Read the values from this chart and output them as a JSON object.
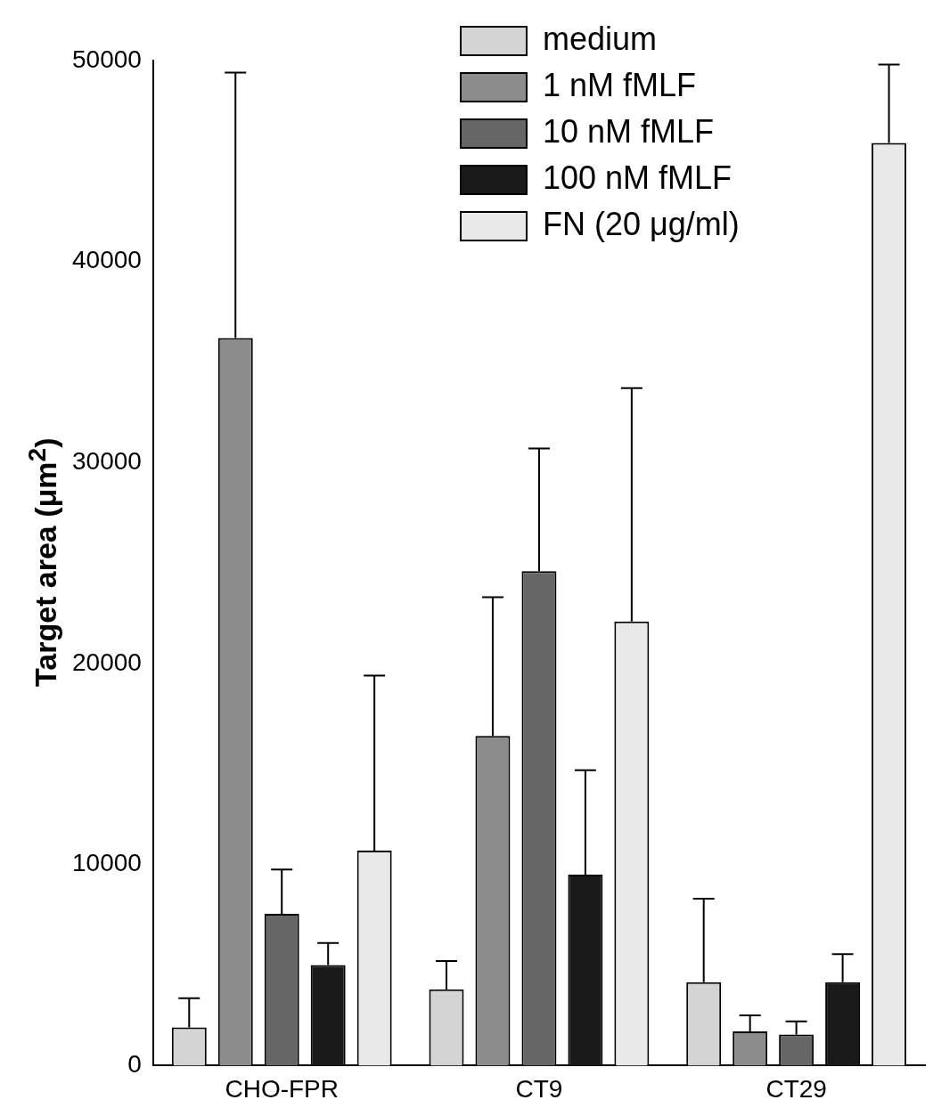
{
  "chart_data": {
    "type": "bar",
    "ylabel": "Target area (μm$^{2}$)",
    "categories": [
      "CHO-FPR",
      "CT9",
      "CT29"
    ],
    "series": [
      {
        "name": "medium",
        "color": "#d4d4d4",
        "values": [
          1900,
          3800,
          4150
        ],
        "errors": [
          [
            1900,
            3350
          ],
          [
            3800,
            5200
          ],
          [
            4150,
            8300
          ]
        ]
      },
      {
        "name": "1 nM fMLF",
        "color": "#8c8c8c",
        "values": [
          36200,
          16400,
          1700
        ],
        "errors": [
          [
            36200,
            49400
          ],
          [
            16400,
            23300
          ],
          [
            1700,
            2500
          ]
        ]
      },
      {
        "name": "10 nM fMLF",
        "color": "#666666",
        "values": [
          7550,
          24600,
          1550
        ],
        "errors": [
          [
            7550,
            9750
          ],
          [
            24600,
            30700
          ],
          [
            1550,
            2200
          ]
        ]
      },
      {
        "name": "100 nM fMLF",
        "color": "#1a1a1a",
        "values": [
          5000,
          9500,
          4150
        ],
        "errors": [
          [
            5000,
            6100
          ],
          [
            9500,
            14700
          ],
          [
            4150,
            5550
          ]
        ]
      },
      {
        "name": "FN (20 μg/ml)",
        "color": "#e9e9e9",
        "values": [
          10700,
          22100,
          45900
        ],
        "errors": [
          [
            10700,
            19400
          ],
          [
            22100,
            33700
          ],
          [
            45900,
            49800
          ]
        ]
      }
    ],
    "ylim": [
      0,
      50000
    ],
    "yticks": [
      0,
      10000,
      20000,
      30000,
      40000,
      50000
    ],
    "grid": false,
    "legend": "top right"
  }
}
